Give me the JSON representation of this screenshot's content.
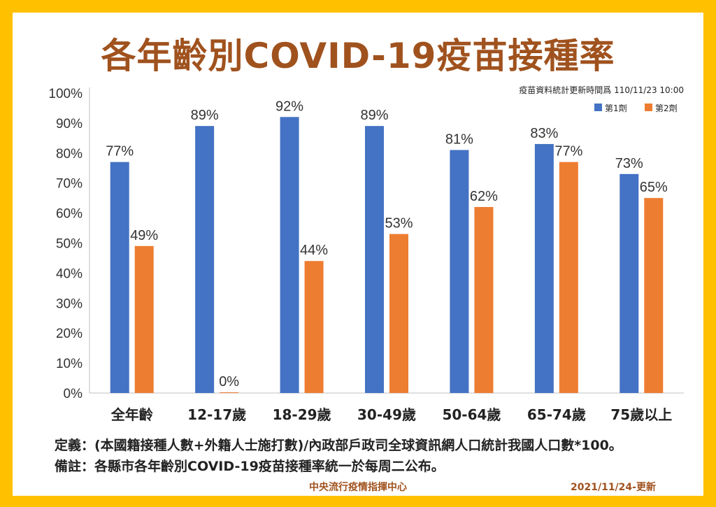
{
  "title": "各年齡別COVID-19疫苗接種率",
  "update_time": "疫苗資料統計更新時間爲 110/11/23 10:00",
  "colors": {
    "border": "#FFC000",
    "title": "#A0521E",
    "dose1": "#4472C4",
    "dose2": "#ED7D31"
  },
  "chart_data": {
    "type": "bar",
    "categories": [
      "全年齡",
      "12-17歲",
      "18-29歲",
      "30-49歲",
      "50-64歲",
      "65-74歲",
      "75歲以上"
    ],
    "series": [
      {
        "name": "第1劑",
        "values": [
          77,
          89,
          92,
          89,
          81,
          83,
          73
        ],
        "labels": [
          "77%",
          "89%",
          "92%",
          "89%",
          "81%",
          "83%",
          "73%"
        ],
        "color": "#4472C4"
      },
      {
        "name": "第2劑",
        "values": [
          49,
          0,
          44,
          53,
          62,
          77,
          65
        ],
        "labels": [
          "49%",
          "0%",
          "44%",
          "53%",
          "62%",
          "77%",
          "65%"
        ],
        "color": "#ED7D31"
      }
    ],
    "ylim": [
      0,
      100
    ],
    "yticks": [
      "0%",
      "10%",
      "20%",
      "30%",
      "40%",
      "50%",
      "60%",
      "70%",
      "80%",
      "90%",
      "100%"
    ],
    "grid": false,
    "legend_position": "top-right"
  },
  "notes": {
    "definition": "定義：(本國籍接種人數+外籍人士施打數)/內政部戶政司全球資訊網人口統計我國人口數*100。",
    "remark": "備註：各縣市各年齡別COVID-19疫苗接種率統一於每周二公布。"
  },
  "footer": {
    "center": "中央流行疫情指揮中心",
    "right": "2021/11/24-更新"
  }
}
